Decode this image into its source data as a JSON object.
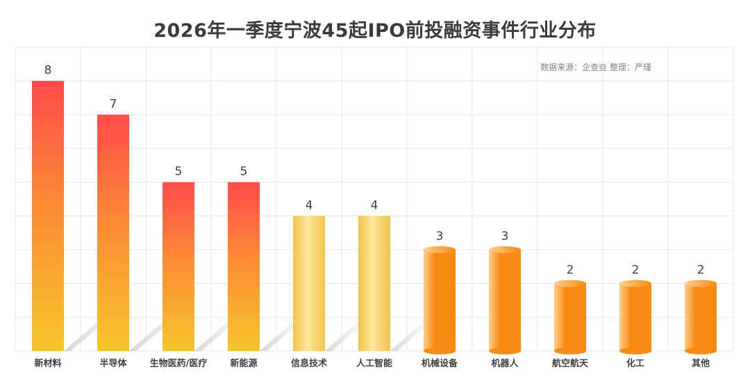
{
  "chart_data": {
    "type": "bar",
    "title": "2026年一季度宁波45起IPO前投融资事件行业分布",
    "source_note": "数据来源：企查查 整理：严瑾",
    "categories": [
      "新材料",
      "半导体",
      "生物医药/医疗",
      "新能源",
      "信息技术",
      "人工智能",
      "机械设备",
      "机器人",
      "航空航天",
      "化工",
      "其他"
    ],
    "values": [
      8,
      7,
      5,
      5,
      4,
      4,
      3,
      3,
      2,
      2,
      2
    ],
    "styles": [
      "red",
      "red",
      "red",
      "red",
      "yellow",
      "yellow",
      "cylinder",
      "cylinder",
      "cylinder",
      "cylinder",
      "cylinder"
    ],
    "ylim": [
      0,
      9
    ],
    "xlabel": "",
    "ylabel": "",
    "grid": true,
    "colors": {
      "red_top": "#ff4b4b",
      "red_mid": "#fb8a35",
      "red_bottom": "#f7c52c",
      "yellow_light": "#ffe69a",
      "yellow_dark": "#f0c44a",
      "cyl_light": "#ffcf8a",
      "cyl_dark": "#f68a12",
      "shadow": "#cfcfcf",
      "grid": "#e6e6e6",
      "text": "#404040"
    }
  }
}
